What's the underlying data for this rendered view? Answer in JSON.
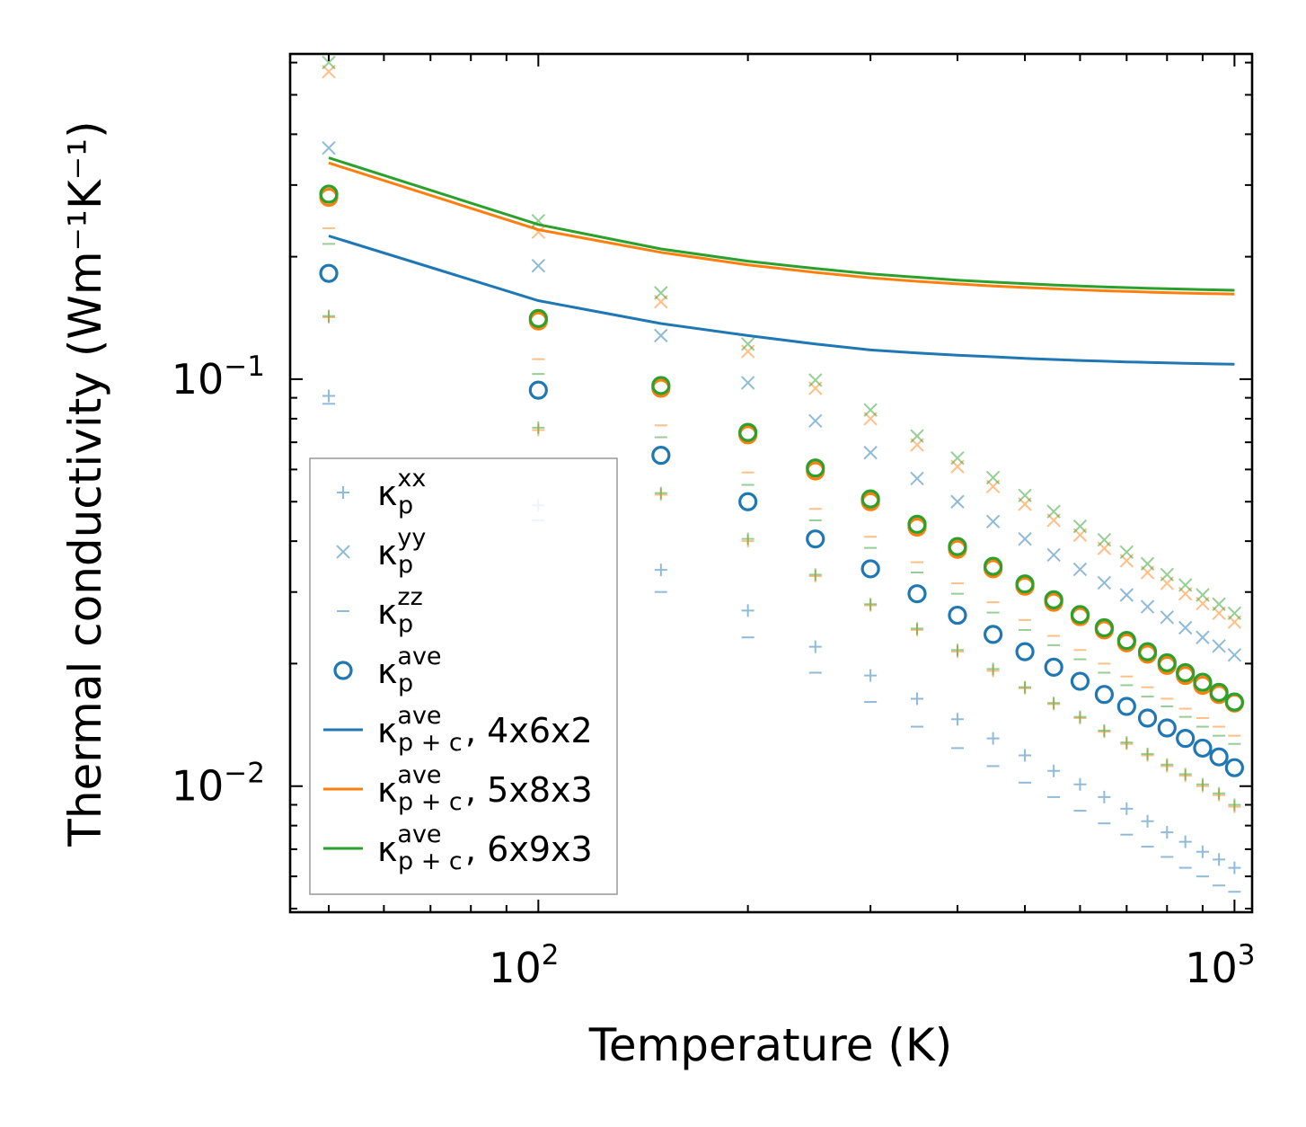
{
  "chart_data": {
    "type": "scatter",
    "xscale": "log",
    "yscale": "log",
    "xlim": [
      44,
      1060
    ],
    "ylim": [
      0.0049,
      0.63
    ],
    "xlabel": "Temperature (K)",
    "ylabel": "Thermal conductivity (Wm⁻¹K⁻¹)",
    "x_ticks": [
      {
        "value": 100,
        "base": "10",
        "exp": "2"
      },
      {
        "value": 1000,
        "base": "10",
        "exp": "3"
      }
    ],
    "y_ticks": [
      {
        "value": 0.1,
        "base": "10",
        "exp": "−1"
      },
      {
        "value": 0.01,
        "base": "10",
        "exp": "−2"
      }
    ],
    "temperatures": [
      50,
      100,
      150,
      200,
      250,
      300,
      350,
      400,
      450,
      500,
      550,
      600,
      650,
      700,
      750,
      800,
      850,
      900,
      950,
      1000
    ],
    "colors": {
      "blue": "#1f77b4",
      "orange": "#ff7f0e",
      "green": "#2ca02c",
      "olive": "#8c8c2a"
    },
    "series": [
      {
        "name": "blue_xx",
        "marker": "plus",
        "color": "#1f77b4",
        "alpha": 0.5,
        "values": [
          0.091,
          0.049,
          0.034,
          0.027,
          0.022,
          0.0187,
          0.0164,
          0.0146,
          0.0131,
          0.0119,
          0.0109,
          0.0101,
          0.0094,
          0.0088,
          0.0082,
          0.0077,
          0.0073,
          0.0069,
          0.0066,
          0.0063
        ]
      },
      {
        "name": "blue_yy",
        "marker": "x",
        "color": "#1f77b4",
        "alpha": 0.5,
        "values": [
          0.37,
          0.19,
          0.128,
          0.098,
          0.079,
          0.066,
          0.057,
          0.05,
          0.0447,
          0.0405,
          0.037,
          0.0341,
          0.0316,
          0.0295,
          0.0276,
          0.026,
          0.0245,
          0.0232,
          0.0221,
          0.021
        ]
      },
      {
        "name": "blue_zz",
        "marker": "minus",
        "color": "#1f77b4",
        "alpha": 0.5,
        "values": [
          0.087,
          0.045,
          0.03,
          0.0232,
          0.019,
          0.0161,
          0.014,
          0.0124,
          0.0112,
          0.0102,
          0.0094,
          0.0087,
          0.0081,
          0.0076,
          0.0071,
          0.0067,
          0.0063,
          0.006,
          0.0057,
          0.0055
        ]
      },
      {
        "name": "blue_ave",
        "marker": "circle",
        "color": "#1f77b4",
        "alpha": 1,
        "values": [
          0.182,
          0.094,
          0.065,
          0.05,
          0.0405,
          0.0342,
          0.0297,
          0.0263,
          0.0236,
          0.0214,
          0.0196,
          0.0181,
          0.0168,
          0.0157,
          0.0147,
          0.0139,
          0.0131,
          0.0124,
          0.0118,
          0.0111
        ]
      },
      {
        "name": "orange_xx",
        "marker": "plus",
        "color": "#ff7f0e",
        "alpha": 0.5,
        "values": [
          0.142,
          0.075,
          0.052,
          0.04,
          0.0328,
          0.0278,
          0.0242,
          0.0214,
          0.0192,
          0.0174,
          0.0159,
          0.0147,
          0.0136,
          0.0127,
          0.0119,
          0.0112,
          0.0106,
          0.01,
          0.0095,
          0.0089
        ]
      },
      {
        "name": "orange_yy",
        "marker": "x",
        "color": "#ff7f0e",
        "alpha": 0.5,
        "values": [
          0.57,
          0.23,
          0.155,
          0.117,
          0.095,
          0.08,
          0.069,
          0.061,
          0.0545,
          0.0493,
          0.045,
          0.0414,
          0.0384,
          0.0358,
          0.0335,
          0.0315,
          0.0297,
          0.0281,
          0.0266,
          0.0253
        ]
      },
      {
        "name": "orange_zz",
        "marker": "minus",
        "color": "#ff7f0e",
        "alpha": 0.5,
        "values": [
          0.235,
          0.112,
          0.077,
          0.059,
          0.048,
          0.041,
          0.0355,
          0.0315,
          0.0283,
          0.0256,
          0.0234,
          0.0216,
          0.02,
          0.0186,
          0.0175,
          0.0164,
          0.0155,
          0.0147,
          0.014,
          0.0133
        ]
      },
      {
        "name": "orange_ave",
        "marker": "circle",
        "color": "#ff7f0e",
        "alpha": 1,
        "values": [
          0.28,
          0.139,
          0.095,
          0.073,
          0.0595,
          0.05,
          0.0433,
          0.0382,
          0.0342,
          0.031,
          0.0283,
          0.0261,
          0.0242,
          0.0225,
          0.0211,
          0.0198,
          0.0187,
          0.0177,
          0.0168,
          0.016
        ]
      },
      {
        "name": "green_xx",
        "marker": "plus",
        "color": "#2ca02c",
        "alpha": 0.5,
        "values": [
          0.143,
          0.076,
          0.0525,
          0.0405,
          0.0331,
          0.028,
          0.0244,
          0.0216,
          0.0194,
          0.0175,
          0.016,
          0.0148,
          0.0137,
          0.0128,
          0.012,
          0.0113,
          0.0107,
          0.0101,
          0.0096,
          0.009
        ]
      },
      {
        "name": "green_yy",
        "marker": "x",
        "color": "#2ca02c",
        "alpha": 0.5,
        "values": [
          0.6,
          0.245,
          0.163,
          0.122,
          0.0995,
          0.084,
          0.0725,
          0.064,
          0.0573,
          0.0518,
          0.0473,
          0.0435,
          0.0403,
          0.0376,
          0.0352,
          0.0331,
          0.0312,
          0.0295,
          0.028,
          0.0266
        ]
      },
      {
        "name": "green_zz",
        "marker": "minus",
        "color": "#2ca02c",
        "alpha": 0.5,
        "values": [
          0.215,
          0.103,
          0.072,
          0.055,
          0.045,
          0.0385,
          0.0335,
          0.0297,
          0.0267,
          0.0242,
          0.0222,
          0.0205,
          0.019,
          0.0177,
          0.0166,
          0.0157,
          0.0148,
          0.014,
          0.0133,
          0.0127
        ]
      },
      {
        "name": "green_ave",
        "marker": "circle",
        "color": "#2ca02c",
        "alpha": 1,
        "values": [
          0.285,
          0.141,
          0.0965,
          0.074,
          0.0605,
          0.0508,
          0.044,
          0.0388,
          0.0347,
          0.0314,
          0.0287,
          0.0264,
          0.0245,
          0.0228,
          0.0214,
          0.0201,
          0.019,
          0.018,
          0.017,
          0.0161
        ]
      },
      {
        "name": "line_4x6x2",
        "marker": "line",
        "color": "#1f77b4",
        "alpha": 1,
        "values": [
          0.225,
          0.156,
          0.137,
          0.128,
          0.122,
          0.118,
          0.116,
          0.1145,
          0.1135,
          0.1125,
          0.1118,
          0.1112,
          0.1107,
          0.1103,
          0.11,
          0.1097,
          0.1094,
          0.1092,
          0.109,
          0.1088
        ]
      },
      {
        "name": "line_5x8x3",
        "marker": "line",
        "color": "#ff7f0e",
        "alpha": 1,
        "values": [
          0.34,
          0.233,
          0.205,
          0.191,
          0.183,
          0.1775,
          0.174,
          0.1715,
          0.1695,
          0.168,
          0.1668,
          0.1658,
          0.165,
          0.1643,
          0.1637,
          0.1632,
          0.1628,
          0.1624,
          0.1621,
          0.1618
        ]
      },
      {
        "name": "line_6x9x3",
        "marker": "line",
        "color": "#2ca02c",
        "alpha": 1,
        "values": [
          0.35,
          0.24,
          0.209,
          0.195,
          0.187,
          0.1815,
          0.178,
          0.1752,
          0.1732,
          0.1717,
          0.1704,
          0.1694,
          0.1686,
          0.1679,
          0.1673,
          0.1668,
          0.1664,
          0.166,
          0.1657,
          0.1654
        ]
      }
    ],
    "legend": {
      "position": "lower-left",
      "entries": [
        {
          "marker": "plus",
          "color": "#1f77b4",
          "alpha": 0.5,
          "sym": "κ",
          "sup": "xx",
          "sub": "p",
          "suffix": ""
        },
        {
          "marker": "x",
          "color": "#1f77b4",
          "alpha": 0.5,
          "sym": "κ",
          "sup": "yy",
          "sub": "p",
          "suffix": ""
        },
        {
          "marker": "minus",
          "color": "#1f77b4",
          "alpha": 0.5,
          "sym": "κ",
          "sup": "zz",
          "sub": "p",
          "suffix": ""
        },
        {
          "marker": "circle",
          "color": "#1f77b4",
          "alpha": 1,
          "sym": "κ",
          "sup": "ave",
          "sub": "p",
          "suffix": ""
        },
        {
          "marker": "line",
          "color": "#1f77b4",
          "alpha": 1,
          "sym": "κ",
          "sup": "ave",
          "sub": "p + c",
          "suffix": ", 4x6x2"
        },
        {
          "marker": "line",
          "color": "#ff7f0e",
          "alpha": 1,
          "sym": "κ",
          "sup": "ave",
          "sub": "p + c",
          "suffix": ", 5x8x3"
        },
        {
          "marker": "line",
          "color": "#2ca02c",
          "alpha": 1,
          "sym": "κ",
          "sup": "ave",
          "sub": "p + c",
          "suffix": ", 6x9x3"
        }
      ]
    }
  }
}
